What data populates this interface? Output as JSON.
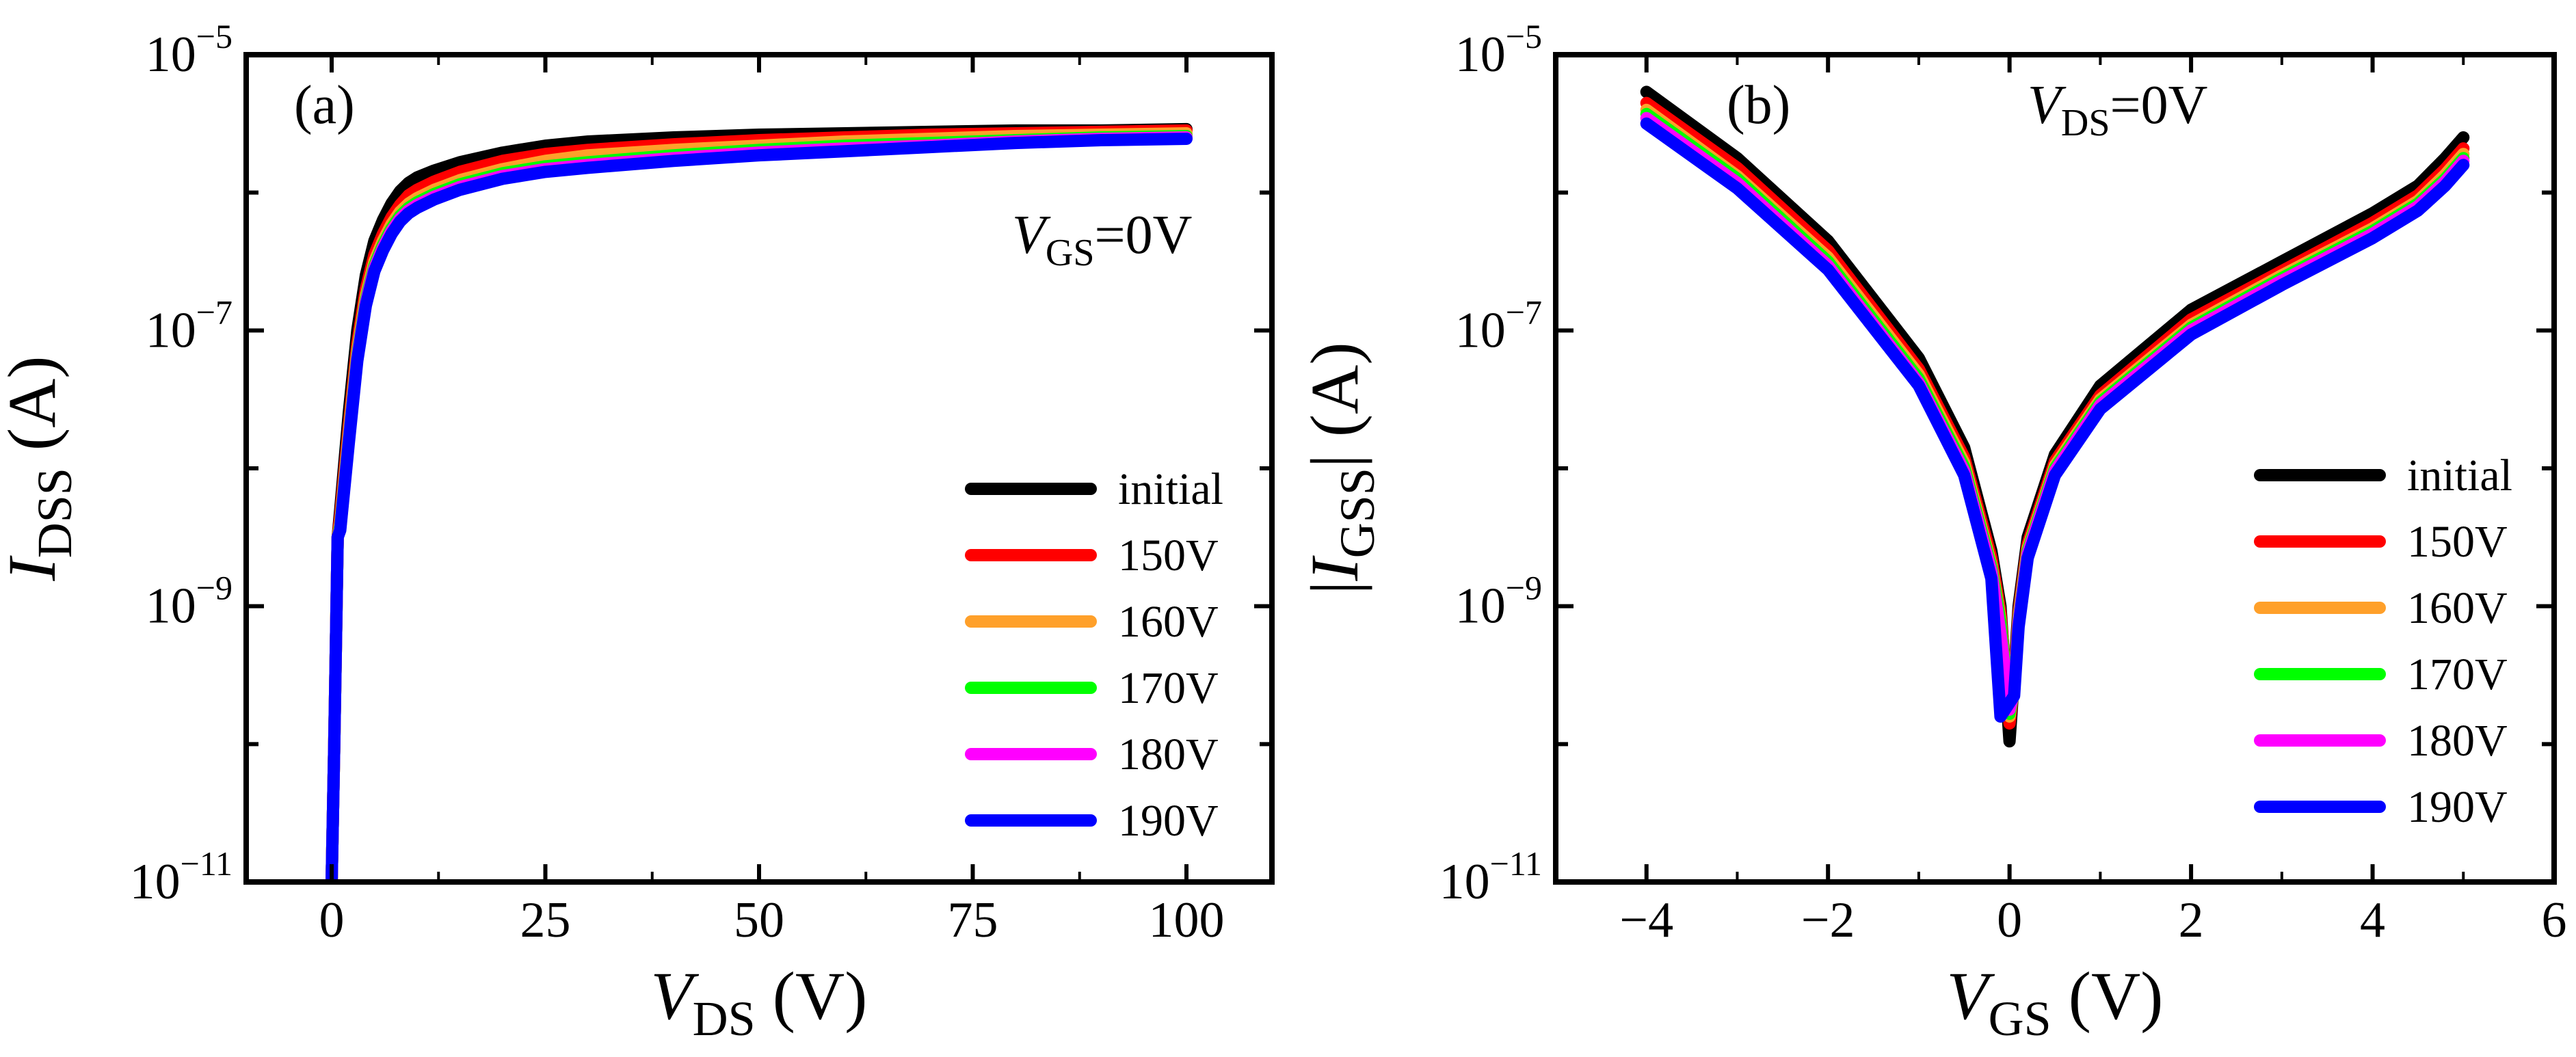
{
  "chart_data": [
    {
      "type": "line",
      "panel_label": "(a)",
      "annotation": {
        "symbol": "V",
        "sub": "GS",
        "rest": "=0V"
      },
      "xlabel": {
        "symbol": "V",
        "sub": "DS",
        "unit": " (V)"
      },
      "ylabel": {
        "symbol": "I",
        "sub": "DSS",
        "unit": " (A)"
      },
      "yscale": "log",
      "xlim": [
        -10,
        110
      ],
      "ylim_exp": [
        -11,
        -5
      ],
      "xticks": [
        0,
        25,
        50,
        75,
        100
      ],
      "xtick_labels": [
        "0",
        "25",
        "50",
        "75",
        "100"
      ],
      "yticks_exp": [
        -11,
        -9,
        -7,
        -5
      ],
      "ytick_labels": [
        {
          "base": "10",
          "exp": "−11"
        },
        {
          "base": "10",
          "exp": "−9"
        },
        {
          "base": "10",
          "exp": "−7"
        },
        {
          "base": "10",
          "exp": "−5"
        }
      ],
      "legend_location": "lower-right",
      "series": [
        {
          "name": "initial",
          "color": "#000000",
          "x": [
            0,
            0.3,
            0.7,
            1,
            2,
            3,
            4,
            5,
            6,
            7,
            8,
            9,
            10,
            12,
            15,
            20,
            25,
            30,
            40,
            50,
            60,
            70,
            80,
            90,
            100
          ],
          "log10y": [
            -11,
            -10,
            -8.5,
            -8.3,
            -7.6,
            -7.0,
            -6.6,
            -6.35,
            -6.2,
            -6.08,
            -5.99,
            -5.93,
            -5.89,
            -5.84,
            -5.78,
            -5.71,
            -5.66,
            -5.63,
            -5.6,
            -5.58,
            -5.57,
            -5.56,
            -5.55,
            -5.55,
            -5.54
          ]
        },
        {
          "name": "150V",
          "color": "#ff0000",
          "x": [
            0,
            0.3,
            0.7,
            1,
            2,
            3,
            4,
            5,
            6,
            7,
            8,
            9,
            10,
            12,
            15,
            20,
            25,
            30,
            40,
            50,
            60,
            70,
            80,
            90,
            100
          ],
          "log10y": [
            -11,
            -10,
            -8.5,
            -8.35,
            -7.7,
            -7.1,
            -6.7,
            -6.45,
            -6.3,
            -6.18,
            -6.09,
            -6.02,
            -5.98,
            -5.92,
            -5.85,
            -5.77,
            -5.72,
            -5.69,
            -5.65,
            -5.62,
            -5.6,
            -5.58,
            -5.57,
            -5.56,
            -5.55
          ]
        },
        {
          "name": "160V",
          "color": "#ffa02a",
          "x": [
            0,
            0.3,
            0.7,
            1,
            2,
            3,
            4,
            5,
            6,
            7,
            8,
            9,
            10,
            12,
            15,
            20,
            25,
            30,
            40,
            50,
            60,
            70,
            80,
            90,
            100
          ],
          "log10y": [
            -11,
            -10,
            -8.5,
            -8.4,
            -7.75,
            -7.15,
            -6.75,
            -6.5,
            -6.35,
            -6.23,
            -6.14,
            -6.08,
            -6.04,
            -5.98,
            -5.91,
            -5.83,
            -5.77,
            -5.73,
            -5.69,
            -5.66,
            -5.63,
            -5.61,
            -5.59,
            -5.58,
            -5.57
          ]
        },
        {
          "name": "170V",
          "color": "#00ff00",
          "x": [
            0,
            0.3,
            0.7,
            1,
            2,
            3,
            4,
            5,
            6,
            7,
            8,
            9,
            10,
            12,
            15,
            20,
            25,
            30,
            40,
            50,
            60,
            70,
            80,
            90,
            100
          ],
          "log10y": [
            -11,
            -10,
            -8.5,
            -8.42,
            -7.78,
            -7.18,
            -6.78,
            -6.53,
            -6.38,
            -6.26,
            -6.17,
            -6.11,
            -6.07,
            -6.01,
            -5.94,
            -5.86,
            -5.81,
            -5.78,
            -5.73,
            -5.69,
            -5.66,
            -5.64,
            -5.62,
            -5.6,
            -5.59
          ]
        },
        {
          "name": "180V",
          "color": "#ff00ff",
          "x": [
            0,
            0.3,
            0.7,
            1,
            2,
            3,
            4,
            5,
            6,
            7,
            8,
            9,
            10,
            12,
            15,
            20,
            25,
            30,
            40,
            50,
            60,
            70,
            80,
            90,
            100
          ],
          "log10y": [
            -11,
            -10,
            -8.5,
            -8.44,
            -7.8,
            -7.2,
            -6.8,
            -6.55,
            -6.4,
            -6.28,
            -6.19,
            -6.13,
            -6.09,
            -6.03,
            -5.96,
            -5.88,
            -5.83,
            -5.8,
            -5.75,
            -5.71,
            -5.68,
            -5.66,
            -5.63,
            -5.61,
            -5.6
          ]
        },
        {
          "name": "190V",
          "color": "#0000ff",
          "x": [
            0,
            0.3,
            0.7,
            1,
            2,
            3,
            4,
            5,
            6,
            7,
            8,
            9,
            10,
            12,
            15,
            20,
            25,
            30,
            40,
            50,
            60,
            70,
            80,
            90,
            100
          ],
          "log10y": [
            -11,
            -10,
            -8.5,
            -8.45,
            -7.82,
            -7.22,
            -6.82,
            -6.57,
            -6.42,
            -6.3,
            -6.21,
            -6.15,
            -6.11,
            -6.05,
            -5.98,
            -5.9,
            -5.85,
            -5.82,
            -5.77,
            -5.73,
            -5.7,
            -5.67,
            -5.64,
            -5.62,
            -5.61
          ]
        }
      ]
    },
    {
      "type": "line",
      "panel_label": "(b)",
      "annotation": {
        "symbol": "V",
        "sub": "DS",
        "rest": "=0V"
      },
      "xlabel": {
        "symbol": "V",
        "sub": "GS",
        "unit": " (V)"
      },
      "ylabel": {
        "open": "|",
        "symbol": "I",
        "sub": "GSS",
        "close": "|",
        "unit": " (A)"
      },
      "yscale": "log",
      "xlim": [
        -5,
        6
      ],
      "ylim_exp": [
        -11,
        -5
      ],
      "xticks": [
        -4,
        -2,
        0,
        2,
        4,
        6
      ],
      "xtick_labels": [
        "−4",
        "−2",
        "0",
        "2",
        "4",
        "6"
      ],
      "yticks_exp": [
        -11,
        -9,
        -7,
        -5
      ],
      "ytick_labels": [
        {
          "base": "10",
          "exp": "−11"
        },
        {
          "base": "10",
          "exp": "−9"
        },
        {
          "base": "10",
          "exp": "−7"
        },
        {
          "base": "10",
          "exp": "−5"
        }
      ],
      "legend_location": "lower-right",
      "series": [
        {
          "name": "initial",
          "color": "#000000",
          "x": [
            -4,
            -3,
            -2,
            -1,
            -0.5,
            -0.2,
            -0.1,
            0,
            0.05,
            0.1,
            0.2,
            0.5,
            1,
            2,
            3,
            4,
            4.5,
            4.8,
            5
          ],
          "log10y": [
            -5.27,
            -5.75,
            -6.35,
            -7.2,
            -7.85,
            -8.6,
            -9.0,
            -9.98,
            -9.5,
            -9.0,
            -8.5,
            -7.9,
            -7.4,
            -6.85,
            -6.5,
            -6.15,
            -5.95,
            -5.75,
            -5.6
          ]
        },
        {
          "name": "150V",
          "color": "#ff0000",
          "x": [
            -4,
            -3,
            -2,
            -1,
            -0.5,
            -0.2,
            -0.1,
            0,
            0.05,
            0.1,
            0.2,
            0.5,
            1,
            2,
            3,
            4,
            4.5,
            4.8,
            5
          ],
          "log10y": [
            -5.35,
            -5.82,
            -6.42,
            -7.28,
            -7.92,
            -8.65,
            -9.05,
            -9.85,
            -9.55,
            -9.05,
            -8.55,
            -7.95,
            -7.47,
            -6.92,
            -6.57,
            -6.22,
            -6.02,
            -5.83,
            -5.68
          ]
        },
        {
          "name": "160V",
          "color": "#ffa02a",
          "x": [
            -4,
            -3,
            -2,
            -1,
            -0.5,
            -0.2,
            -0.1,
            0,
            0.05,
            0.1,
            0.2,
            0.5,
            1,
            2,
            3,
            4,
            4.5,
            4.8,
            5
          ],
          "log10y": [
            -5.4,
            -5.88,
            -6.47,
            -7.32,
            -7.96,
            -8.7,
            -9.1,
            -9.8,
            -9.58,
            -9.08,
            -8.58,
            -7.98,
            -7.5,
            -6.96,
            -6.6,
            -6.26,
            -6.06,
            -5.87,
            -5.72
          ]
        },
        {
          "name": "170V",
          "color": "#00ff00",
          "x": [
            -4,
            -3,
            -2,
            -1,
            -0.5,
            -0.2,
            -0.1,
            0,
            0.05,
            0.1,
            0.2,
            0.5,
            1,
            2,
            3,
            4,
            4.5,
            4.8,
            5
          ],
          "log10y": [
            -5.43,
            -5.9,
            -6.5,
            -7.35,
            -7.99,
            -8.72,
            -9.12,
            -9.78,
            -9.6,
            -9.1,
            -8.6,
            -8.0,
            -7.52,
            -6.98,
            -6.62,
            -6.28,
            -6.08,
            -5.9,
            -5.75
          ]
        },
        {
          "name": "180V",
          "color": "#ff00ff",
          "x": [
            -4,
            -3,
            -2,
            -1,
            -0.5,
            -0.2,
            -0.1,
            0,
            0.05,
            0.1,
            0.2,
            0.5,
            1,
            2,
            3,
            4,
            4.5,
            4.8,
            5
          ],
          "log10y": [
            -5.46,
            -5.93,
            -6.53,
            -7.38,
            -8.02,
            -8.75,
            -9.2,
            -9.75,
            -9.62,
            -9.12,
            -8.62,
            -8.02,
            -7.54,
            -7.0,
            -6.64,
            -6.3,
            -6.1,
            -5.92,
            -5.77
          ]
        },
        {
          "name": "190V",
          "color": "#0000ff",
          "x": [
            -4,
            -3,
            -2,
            -1,
            -0.5,
            -0.2,
            -0.1,
            0,
            0.05,
            0.1,
            0.2,
            0.5,
            1,
            2,
            3,
            4,
            4.5,
            4.8,
            5
          ],
          "log10y": [
            -5.5,
            -5.97,
            -6.56,
            -7.4,
            -8.05,
            -8.8,
            -9.8,
            -9.7,
            -9.65,
            -9.15,
            -8.65,
            -8.05,
            -7.57,
            -7.03,
            -6.67,
            -6.33,
            -6.13,
            -5.95,
            -5.8
          ]
        }
      ]
    }
  ]
}
